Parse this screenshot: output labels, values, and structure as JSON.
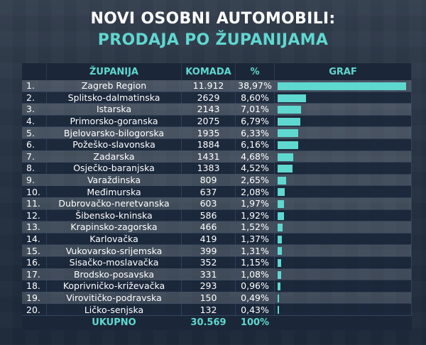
{
  "header": {
    "title_line1": "NOVI OSOBNI AUTOMOBILI:",
    "title_line2": "PRODAJA PO ŽUPANIJAMA"
  },
  "table": {
    "columns": [
      "ŽUPANIJA",
      "KOMADA",
      "%",
      "GRAF"
    ],
    "rows": [
      {
        "rank": "1.",
        "county": "Zagreb Region",
        "qty": "11.912",
        "pct": "38,97%",
        "value": 38.97
      },
      {
        "rank": "2.",
        "county": "Splitsko-dalmatinska",
        "qty": "2629",
        "pct": "8,60%",
        "value": 8.6
      },
      {
        "rank": "3.",
        "county": "Istarska",
        "qty": "2143",
        "pct": "7,01%",
        "value": 7.01
      },
      {
        "rank": "4.",
        "county": "Primorsko-goranska",
        "qty": "2075",
        "pct": "6,79%",
        "value": 6.79
      },
      {
        "rank": "5.",
        "county": "Bjelovarsko-bilogorska",
        "qty": "1935",
        "pct": "6,33%",
        "value": 6.33
      },
      {
        "rank": "6.",
        "county": "Požeško-slavonska",
        "qty": "1884",
        "pct": "6,16%",
        "value": 6.16
      },
      {
        "rank": "7.",
        "county": "Zadarska",
        "qty": "1431",
        "pct": "4,68%",
        "value": 4.68
      },
      {
        "rank": "8.",
        "county": "Osječko-baranjska",
        "qty": "1383",
        "pct": "4,52%",
        "value": 4.52
      },
      {
        "rank": "9.",
        "county": "Varaždinska",
        "qty": "809",
        "pct": "2,65%",
        "value": 2.65
      },
      {
        "rank": "10.",
        "county": "Međimurska",
        "qty": "637",
        "pct": "2,08%",
        "value": 2.08
      },
      {
        "rank": "11.",
        "county": "Dubrovačko-neretvanska",
        "qty": "603",
        "pct": "1,97%",
        "value": 1.97
      },
      {
        "rank": "12.",
        "county": "Šibensko-kninska",
        "qty": "586",
        "pct": "1,92%",
        "value": 1.92
      },
      {
        "rank": "13.",
        "county": "Krapinsko-zagorska",
        "qty": "466",
        "pct": "1,52%",
        "value": 1.52
      },
      {
        "rank": "14.",
        "county": "Karlovačka",
        "qty": "419",
        "pct": "1,37%",
        "value": 1.37
      },
      {
        "rank": "15.",
        "county": "Vukovarsko-srijemska",
        "qty": "399",
        "pct": "1,31%",
        "value": 1.31
      },
      {
        "rank": "16.",
        "county": "Sisačko-moslavačka",
        "qty": "352",
        "pct": "1,15%",
        "value": 1.15
      },
      {
        "rank": "17.",
        "county": "Brodsko-posavska",
        "qty": "331",
        "pct": "1,08%",
        "value": 1.08
      },
      {
        "rank": "18.",
        "county": "Koprivničko-križevačka",
        "qty": "293",
        "pct": "0,96%",
        "value": 0.96
      },
      {
        "rank": "19.",
        "county": "Virovitičko-podravska",
        "qty": "150",
        "pct": "0,49%",
        "value": 0.49
      },
      {
        "rank": "20.",
        "county": "Ličko-senjska",
        "qty": "132",
        "pct": "0,43%",
        "value": 0.43
      }
    ],
    "total": {
      "label": "UKUPNO",
      "qty": "30.569",
      "pct": "100%"
    }
  },
  "colors": {
    "accent": "#5fd8d0",
    "title": "#ffffff",
    "header_bg": "#1b2738"
  }
}
